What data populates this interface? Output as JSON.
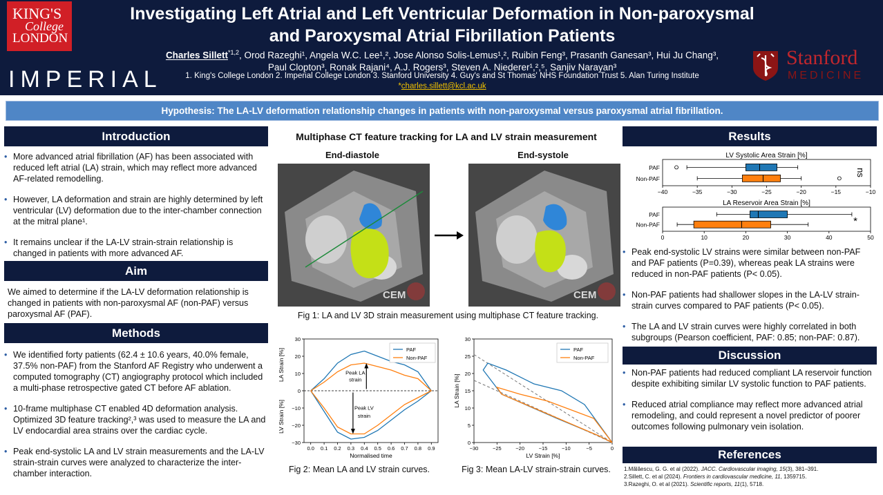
{
  "header": {
    "kcl_logo": {
      "line1": "KING'S",
      "line2": "College",
      "line3": "LONDON"
    },
    "imperial_logo": "IMPERIAL",
    "title_line1": "Investigating Left Atrial and Left Ventricular Deformation in Non-paroxysmal",
    "title_line2": "and Paroxysmal Atrial Fibrillation Patients",
    "presenter": "Charles Sillett",
    "presenter_sup": "*1,2",
    "authors_rest1": ", Orod Razeghi¹, Angela W.C. Lee¹,², Jose Alonso Solis-Lemus¹,², Ruibin Feng³, Prasanth Ganesan³, Hui Ju Chang³,",
    "authors_line2": "Paul Clopton³, Ronak Rajani⁴, A.J. Rogers³, Steven A. Niederer¹,²,⁵, Sanjiv Narayan³",
    "affiliations": "1. King's College London 2. Imperial College London 3. Stanford University 4. Guy's and St Thomas' NHS Foundation Trust 5. Alan Turing Institute",
    "email_prefix": "*",
    "email": "charles.sillett@kcl.ac.uk",
    "stanford_logo": {
      "name": "Stanford",
      "sub": "MEDICINE"
    }
  },
  "hypothesis": "Hypothesis: The LA-LV deformation relationship changes in patients with non-paroxysmal versus paroxysmal atrial fibrillation.",
  "introduction": {
    "title": "Introduction",
    "bullets": [
      "More advanced atrial fibrillation (AF) has been associated with reduced left atrial (LA) strain, which may reflect more advanced AF-related remodelling.",
      "However, LA deformation and strain are highly determined by left ventricular (LV) deformation due to the inter-chamber connection at the mitral plane¹.",
      "It remains unclear if the LA-LV strain-strain relationship is changed in patients with more advanced AF."
    ]
  },
  "aim": {
    "title": "Aim",
    "text": "We aimed to determine if the LA-LV deformation relationship is changed in patients with non-paroxysmal AF (non-PAF) versus paroxysmal AF (PAF)."
  },
  "methods": {
    "title": "Methods",
    "bullets": [
      "We identified forty patients (62.4 ± 10.6 years, 40.0% female, 37.5% non-PAF) from the Stanford AF Registry who underwent a computed tomography (CT) angiography protocol which included a multi-phase retrospective gated CT before AF ablation.",
      "10-frame multiphase CT enabled 4D deformation analysis. Optimized 3D feature tracking²,³ was used to measure the LA and LV endocardial area strains over the cardiac cycle.",
      "Peak end-systolic LA and LV strain measurements and the LA-LV strain-strain curves were analyzed to characterize the inter-chamber interaction."
    ]
  },
  "figure1": {
    "title": "Multiphase CT feature tracking for LA and LV strain measurement",
    "label_left": "End-diastole",
    "label_right": "End-systole",
    "watermark": "CEM",
    "caption": "Fig 1: LA and LV 3D strain measurement using multiphase CT feature tracking."
  },
  "figure2": {
    "caption": "Fig 2: Mean LA and LV strain curves."
  },
  "figure3": {
    "caption": "Fig 3: Mean LA-LV strain-strain curves."
  },
  "results": {
    "title": "Results",
    "bullets": [
      "Peak end-systolic LV strains were similar between non-PAF and PAF patients (P=0.39), whereas peak LA strains were reduced in non-PAF patients (P< 0.05).",
      "Non-PAF patients had shallower slopes in the LA-LV strain-strain curves compared to PAF patients (P< 0.05).",
      "The LA and LV strain curves were highly correlated in both subgroups (Pearson coefficient, PAF: 0.85; non-PAF: 0.87)."
    ]
  },
  "discussion": {
    "title": "Discussion",
    "bullets": [
      "Non-PAF patients had reduced compliant LA reservoir function despite exhibiting similar LV systolic function to PAF patients.",
      "Reduced atrial compliance may reflect more advanced atrial remodeling, and could represent a novel predictor of poorer outcomes following pulmonary vein isolation."
    ]
  },
  "references": {
    "title": "References",
    "items": [
      {
        "pre": "1.Mălăescu, G. G. et al (2022). ",
        "journal": "JACC. Cardiovascular imaging, 15",
        "post": "(3), 381–391."
      },
      {
        "pre": "2.Sillett, C. et al (2024). ",
        "journal": "Frontiers in cardiovascular medicine, 11",
        "post": ", 1359715."
      },
      {
        "pre": "3.Razeghi, O. et al (2021). ",
        "journal": "Scientific reports, 11",
        "post": "(1), 5718."
      }
    ]
  },
  "colors": {
    "paf": "#1f77b4",
    "nonpaf": "#ff7f0e",
    "navy": "#0e1b3d",
    "accent": "#4f86c6"
  },
  "chart_data": [
    {
      "id": "boxplot-lv",
      "type": "boxplot",
      "title": "LV Systolic Area Strain [%]",
      "categories": [
        "PAF",
        "Non-PAF"
      ],
      "xlim": [
        -40,
        -10
      ],
      "xticks": [
        -40,
        -35,
        -30,
        -25,
        -20,
        -15,
        -10
      ],
      "series": [
        {
          "name": "PAF",
          "whisker_low": -36.5,
          "q1": -28,
          "median": -26,
          "q3": -23.5,
          "whisker_high": -20.5,
          "outliers": [
            -38
          ]
        },
        {
          "name": "Non-PAF",
          "whisker_low": -35,
          "q1": -28.5,
          "median": -25.5,
          "q3": -23,
          "whisker_high": -20,
          "outliers": [
            -14.5
          ]
        }
      ],
      "annotation": "ns"
    },
    {
      "id": "boxplot-la",
      "type": "boxplot",
      "title": "LA Reservoir Area Strain [%]",
      "categories": [
        "PAF",
        "Non-PAF"
      ],
      "xlim": [
        0,
        50
      ],
      "xticks": [
        0,
        10,
        20,
        30,
        40,
        50
      ],
      "series": [
        {
          "name": "PAF",
          "whisker_low": 13,
          "q1": 21,
          "median": 23,
          "q3": 30,
          "whisker_high": 45.5,
          "outliers": []
        },
        {
          "name": "Non-PAF",
          "whisker_low": 3.5,
          "q1": 7.5,
          "median": 19,
          "q3": 26,
          "whisker_high": 35,
          "outliers": []
        }
      ],
      "annotation": "*"
    },
    {
      "id": "fig2",
      "type": "line",
      "xlabel": "Normalised time",
      "ylabel_top": "LA Strain [%]",
      "ylabel_bottom": "LV Strain [%]",
      "xlim": [
        -0.05,
        0.95
      ],
      "ylim": [
        -30,
        30
      ],
      "xticks": [
        0.0,
        0.1,
        0.2,
        0.3,
        0.4,
        0.5,
        0.6,
        0.7,
        0.8,
        0.9
      ],
      "yticks": [
        -30,
        -20,
        -10,
        0,
        10,
        20,
        30
      ],
      "x": [
        0.0,
        0.1,
        0.2,
        0.3,
        0.4,
        0.5,
        0.6,
        0.7,
        0.8,
        0.9
      ],
      "series": [
        {
          "name": "PAF",
          "la": [
            0,
            7,
            16,
            21,
            23,
            20,
            17,
            15,
            11,
            0
          ],
          "lv": [
            0,
            -12,
            -24,
            -28,
            -27,
            -23,
            -17,
            -11,
            -6,
            0
          ]
        },
        {
          "name": "Non-PAF",
          "la": [
            0,
            5,
            11,
            15,
            16,
            14,
            12,
            9,
            7,
            0
          ],
          "lv": [
            0,
            -10,
            -21,
            -25,
            -25,
            -20,
            -14,
            -8,
            -4,
            0
          ]
        }
      ],
      "annotations": [
        "Peak LA strain",
        "Peak LV strain"
      ]
    },
    {
      "id": "fig3",
      "type": "line",
      "xlabel": "LV Strain [%]",
      "ylabel": "LA Strain [%]",
      "xlim": [
        -30,
        0
      ],
      "ylim": [
        0,
        30
      ],
      "xticks": [
        -30,
        -25,
        -20,
        -15,
        -10,
        -5,
        0
      ],
      "yticks": [
        0,
        5,
        10,
        15,
        20,
        25,
        30
      ],
      "series": [
        {
          "name": "PAF",
          "points": [
            [
              0,
              0
            ],
            [
              -6,
              11
            ],
            [
              -11,
              15
            ],
            [
              -17,
              17
            ],
            [
              -23,
              21
            ],
            [
              -27,
              23
            ],
            [
              -28,
              21
            ],
            [
              -24,
              14
            ],
            [
              -12,
              7
            ],
            [
              -3,
              2
            ],
            [
              0,
              0
            ]
          ]
        },
        {
          "name": "Non-PAF",
          "points": [
            [
              0,
              0
            ],
            [
              -4,
              7
            ],
            [
              -8,
              9
            ],
            [
              -14,
              12
            ],
            [
              -20,
              14
            ],
            [
              -25,
              16
            ],
            [
              -24,
              14
            ],
            [
              -17,
              10
            ],
            [
              -10,
              6
            ],
            [
              -3,
              2
            ],
            [
              0,
              0
            ]
          ]
        }
      ],
      "fits": [
        {
          "slope": -0.85,
          "intercept": 0
        },
        {
          "slope": -0.6,
          "intercept": 0
        }
      ]
    }
  ]
}
